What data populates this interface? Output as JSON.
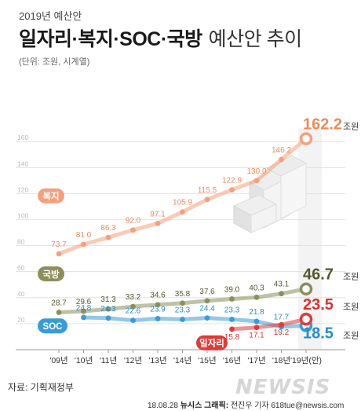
{
  "header": {
    "supertitle": "2019년 예산안",
    "title_main": "일자리·복지·SOC·국방",
    "title_sub": "예산안 추이",
    "unit": "(단위: 조원, 시계열)"
  },
  "footer": {
    "source": "자료: 기획재정부",
    "date": "18.08.28",
    "agency": "뉴시스 그래픽:",
    "reporter": "전진우 기자 618tue@newsis.com",
    "watermark": "NEWSIS"
  },
  "chart_data": {
    "type": "line",
    "categories": [
      "'09년",
      "'10년",
      "'11년",
      "'12년",
      "'13년",
      "'14년",
      "'15년",
      "'16년",
      "'17년",
      "'18년",
      "'19년(안)"
    ],
    "ylim": [
      0,
      170
    ],
    "yticks": [
      0,
      20,
      40,
      60,
      80,
      100,
      120,
      140,
      160
    ],
    "grid": true,
    "value_unit": "조원",
    "series": [
      {
        "name": "복지",
        "color": "#f4a07c",
        "label_color": "#f08a5d",
        "values": [
          73.7,
          81.0,
          86.3,
          92.0,
          97.1,
          105.9,
          115.5,
          122.9,
          130.0,
          146.2,
          162.2
        ],
        "labels": [
          "73.7",
          "81.0",
          "86.3",
          "92.0",
          "97.1",
          "105.9",
          "115.5",
          "122.9",
          "130.0",
          "146.2",
          "162.2"
        ]
      },
      {
        "name": "국방",
        "color": "#8c8f5c",
        "label_color": "#55582e",
        "values": [
          28.7,
          29.6,
          31.3,
          33.2,
          34.6,
          35.8,
          37.6,
          39.0,
          40.3,
          43.1,
          46.7
        ],
        "labels": [
          "28.7",
          "29.6",
          "31.3",
          "33.2",
          "34.6",
          "35.8",
          "37.6",
          "39.0",
          "40.3",
          "43.1",
          "46.7"
        ]
      },
      {
        "name": "SOC",
        "color": "#3a9bd5",
        "label_color": "#2a8cc8",
        "values": [
          null,
          24.8,
          24.3,
          22.6,
          23.9,
          23.3,
          24.4,
          23.3,
          21.8,
          17.7,
          18.5
        ],
        "labels": [
          "",
          "24.8",
          "24.3",
          "22.6",
          "23.9",
          "23.3",
          "24.4",
          "23.3",
          "21.8",
          "17.7",
          "18.5"
        ]
      },
      {
        "name": "일자리",
        "color": "#e03a3a",
        "label_color": "#d9332f",
        "values": [
          null,
          null,
          null,
          null,
          null,
          null,
          null,
          15.8,
          17.1,
          19.2,
          23.5
        ],
        "labels": [
          "",
          "",
          "",
          "",
          "",
          "",
          "",
          "15.8",
          "17.1",
          "19.2",
          "23.5"
        ]
      }
    ]
  }
}
